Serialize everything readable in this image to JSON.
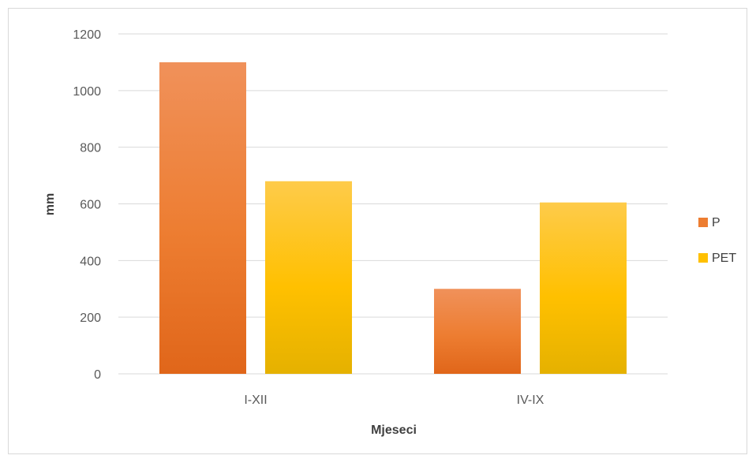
{
  "chart_data": {
    "type": "bar",
    "categories": [
      "I-XII",
      "IV-IX"
    ],
    "series": [
      {
        "name": "P",
        "values": [
          1100,
          300
        ],
        "color": "#ED7D31",
        "color_light": "#F0915A",
        "color_dark": "#E0661A"
      },
      {
        "name": "PET",
        "values": [
          680,
          605
        ],
        "color": "#FFC000",
        "color_light": "#FECB4A",
        "color_dark": "#E5B100"
      }
    ],
    "title": "",
    "xlabel": "Mjeseci",
    "ylabel": "mm",
    "ylim": [
      0,
      1200
    ],
    "yticks": [
      "0",
      "200",
      "400",
      "600",
      "800",
      "1000",
      "1200"
    ],
    "grid": true,
    "legend_position": "right",
    "gridline_color": "#d9d9d9"
  }
}
